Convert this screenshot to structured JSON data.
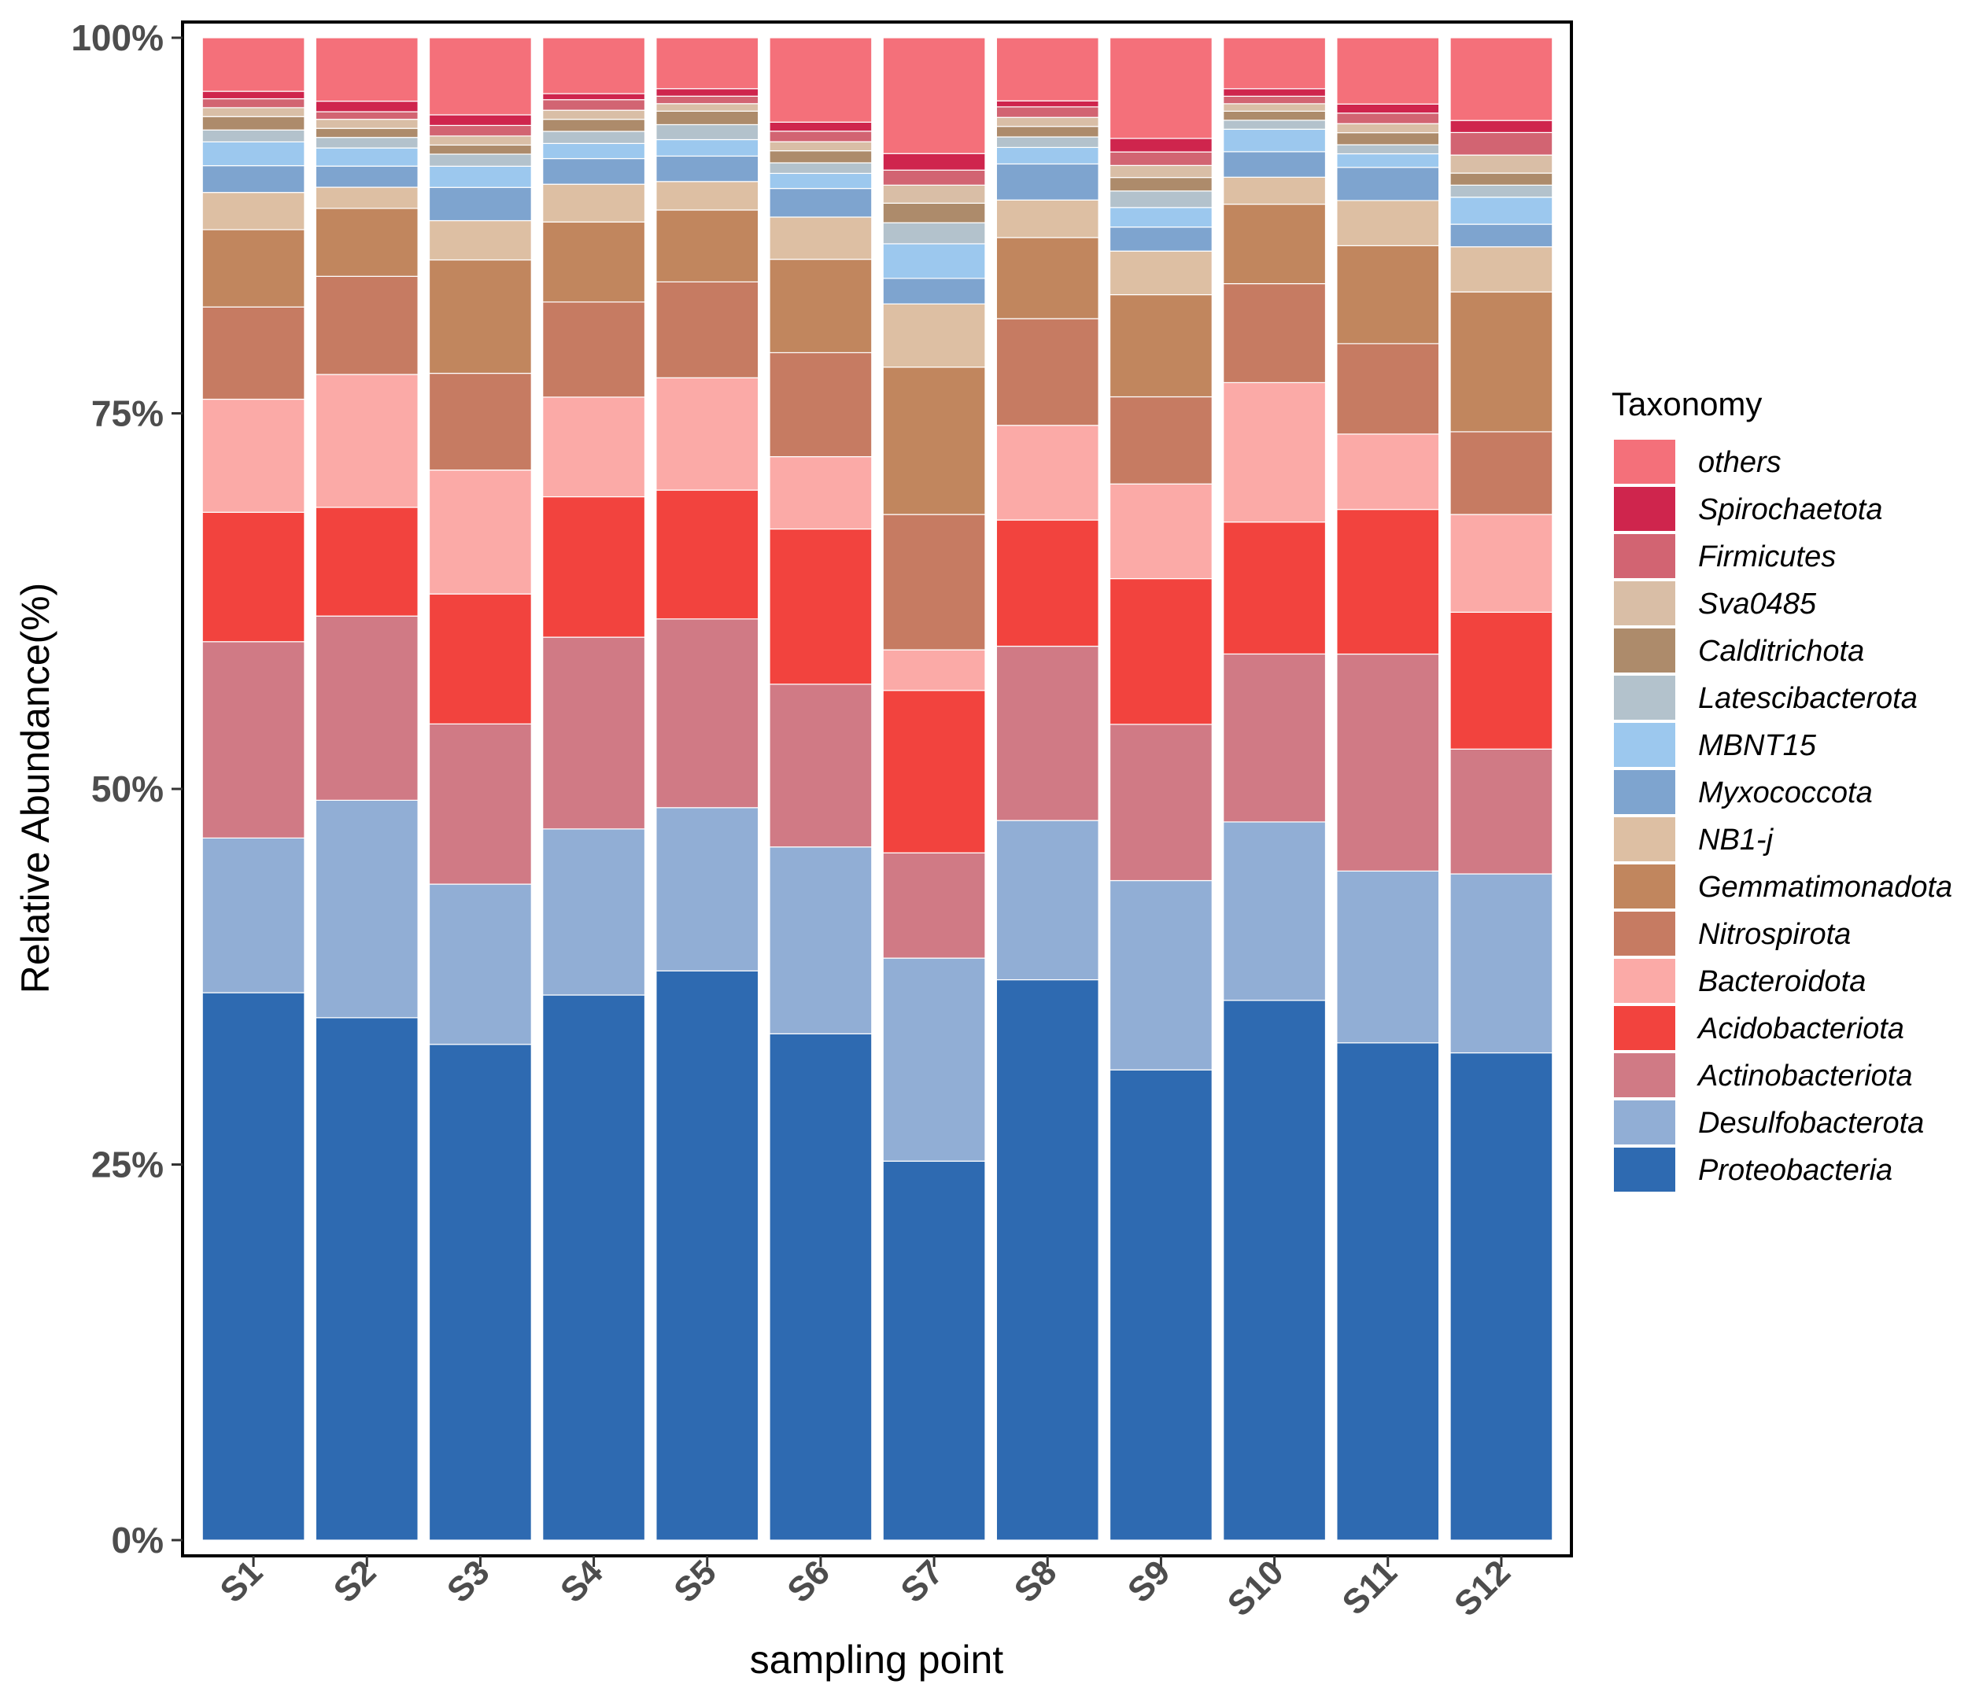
{
  "chart_data": {
    "type": "bar",
    "stacked": true,
    "title": "",
    "xlabel": "sampling point",
    "ylabel": "Relative Abundance(%)",
    "ylim": [
      0,
      100
    ],
    "yticks": [
      "0%",
      "25%",
      "50%",
      "75%",
      "100%"
    ],
    "grid": false,
    "legend_title": "Taxonomy",
    "legend_position": "right",
    "categories": [
      "S1",
      "S2",
      "S3",
      "S4",
      "S5",
      "S6",
      "S7",
      "S8",
      "S9",
      "S10",
      "S11",
      "S12"
    ],
    "series": [
      {
        "name": "Proteobacteria",
        "color": "#2E6AB1",
        "values": [
          36.8,
          34.6,
          32.8,
          36.1,
          38.0,
          33.6,
          25.2,
          37.3,
          31.3,
          36.0,
          33.0,
          32.4
        ]
      },
      {
        "name": "Desulfobacterota",
        "color": "#91AED5",
        "values": [
          10.4,
          14.4,
          10.6,
          11.0,
          10.9,
          12.4,
          13.5,
          10.6,
          12.6,
          11.9,
          11.4,
          11.9
        ]
      },
      {
        "name": "Actinobacteriota",
        "color": "#D07A85",
        "values": [
          13.2,
          12.2,
          10.6,
          12.7,
          12.6,
          10.8,
          7.0,
          11.6,
          10.4,
          11.2,
          14.4,
          8.3
        ]
      },
      {
        "name": "Acidobacteriota",
        "color": "#F2433E",
        "values": [
          8.7,
          7.2,
          8.6,
          9.3,
          8.6,
          10.3,
          10.8,
          8.4,
          9.7,
          8.8,
          9.6,
          9.1
        ]
      },
      {
        "name": "Bacteroidota",
        "color": "#FBAAA7",
        "values": [
          7.6,
          8.8,
          8.2,
          6.6,
          7.5,
          4.8,
          2.7,
          6.3,
          6.3,
          9.3,
          5.0,
          6.5
        ]
      },
      {
        "name": "Nitrospirota",
        "color": "#C67B62",
        "values": [
          6.2,
          6.5,
          6.4,
          6.3,
          6.4,
          6.9,
          9.0,
          7.1,
          5.8,
          6.6,
          6.0,
          5.5
        ]
      },
      {
        "name": "Gemmatimonadota",
        "color": "#C1865E",
        "values": [
          5.2,
          4.5,
          7.5,
          5.3,
          4.8,
          6.2,
          9.8,
          5.4,
          6.8,
          5.3,
          6.5,
          9.3
        ]
      },
      {
        "name": "NB1-j",
        "color": "#DDBFA3",
        "values": [
          2.5,
          1.4,
          2.6,
          2.5,
          1.9,
          2.8,
          4.2,
          2.5,
          2.9,
          1.8,
          3.0,
          3.0
        ]
      },
      {
        "name": "Myxococcota",
        "color": "#7EA4CF",
        "values": [
          1.8,
          1.4,
          2.2,
          1.7,
          1.7,
          1.9,
          1.7,
          2.4,
          1.6,
          1.7,
          2.2,
          1.5
        ]
      },
      {
        "name": "MBNT15",
        "color": "#9CC8EE",
        "values": [
          1.6,
          1.2,
          1.4,
          1.0,
          1.1,
          1.0,
          2.3,
          1.1,
          1.3,
          1.5,
          0.9,
          1.8
        ]
      },
      {
        "name": "Latescibacterota",
        "color": "#B3C2CC",
        "values": [
          0.8,
          0.7,
          0.8,
          0.8,
          1.0,
          0.7,
          1.4,
          0.7,
          1.1,
          0.6,
          0.6,
          0.8
        ]
      },
      {
        "name": "Calditrichota",
        "color": "#AD8B6B",
        "values": [
          0.9,
          0.6,
          0.6,
          0.8,
          0.9,
          0.8,
          1.3,
          0.7,
          0.9,
          0.6,
          0.8,
          0.8
        ]
      },
      {
        "name": "Sva0485",
        "color": "#D9BEA6",
        "values": [
          0.6,
          0.6,
          0.6,
          0.6,
          0.5,
          0.6,
          1.2,
          0.6,
          0.8,
          0.5,
          0.6,
          1.2
        ]
      },
      {
        "name": "Firmicutes",
        "color": "#D26472",
        "values": [
          0.6,
          0.5,
          0.7,
          0.7,
          0.5,
          0.7,
          1.0,
          0.7,
          0.9,
          0.5,
          0.7,
          1.5
        ]
      },
      {
        "name": "Spirochaetota",
        "color": "#CF254D",
        "values": [
          0.5,
          0.7,
          0.7,
          0.4,
          0.5,
          0.6,
          1.1,
          0.4,
          0.9,
          0.5,
          0.6,
          0.8
        ]
      },
      {
        "name": "others",
        "color": "#F4707A",
        "values": [
          3.6,
          4.2,
          5.1,
          3.7,
          3.4,
          5.6,
          7.7,
          4.2,
          6.7,
          3.4,
          4.4,
          5.5
        ]
      }
    ]
  }
}
